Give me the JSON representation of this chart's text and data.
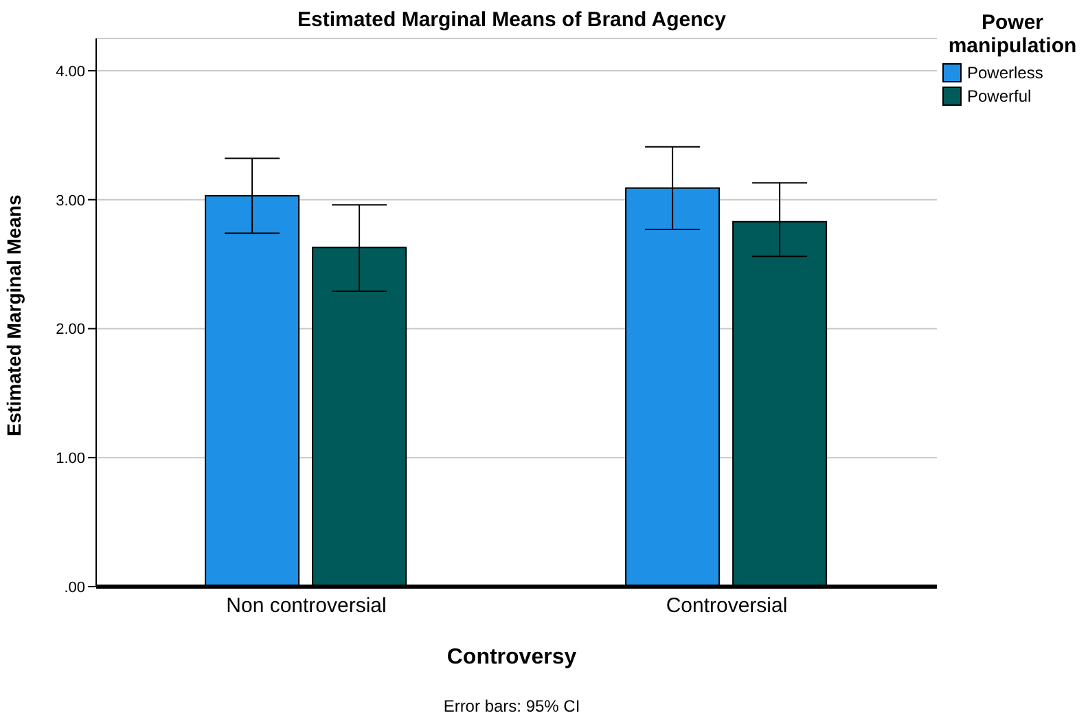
{
  "chart_data": {
    "type": "bar",
    "title": "Estimated Marginal Means of Brand Agency",
    "xlabel": "Controversy",
    "ylabel": "Estimated Marginal Means",
    "legend_title": "Power manipulation",
    "annotations": [
      "Error bars: 95% CI"
    ],
    "categories": [
      "Non controversial",
      "Controversial"
    ],
    "series": [
      {
        "name": "Powerless",
        "color": "#1e90e6",
        "values": [
          3.03,
          3.09
        ],
        "errors": [
          [
            2.74,
            3.32
          ],
          [
            2.77,
            3.41
          ]
        ]
      },
      {
        "name": "Powerful",
        "color": "#005a5a",
        "values": [
          2.63,
          2.83
        ],
        "errors": [
          [
            2.29,
            2.96
          ],
          [
            2.56,
            3.13
          ]
        ]
      }
    ],
    "ylim": [
      0,
      4.25
    ],
    "yticks": [
      {
        "value": 0,
        "label": ".00"
      },
      {
        "value": 1,
        "label": "1.00"
      },
      {
        "value": 2,
        "label": "2.00"
      },
      {
        "value": 3,
        "label": "3.00"
      },
      {
        "value": 4,
        "label": "4.00"
      }
    ],
    "grid": "y",
    "legend": "top right"
  }
}
